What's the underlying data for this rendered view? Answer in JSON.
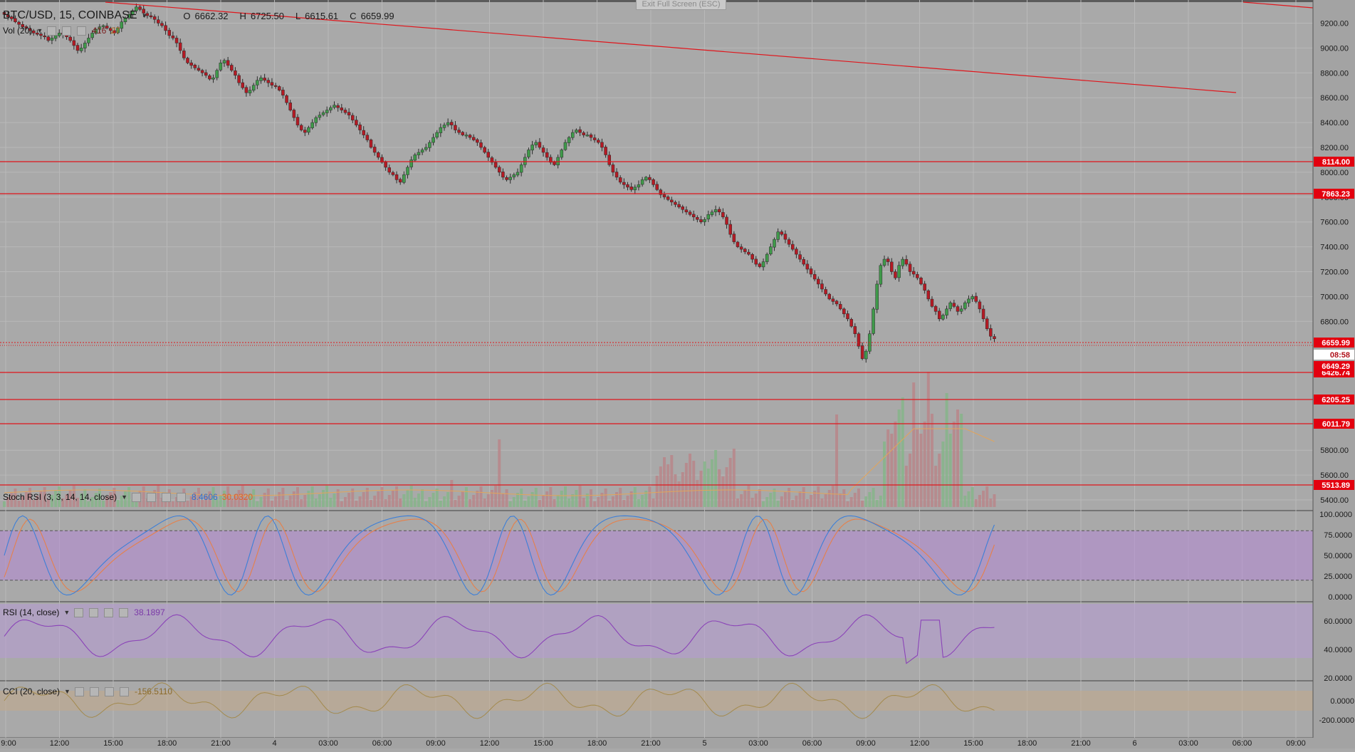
{
  "header": {
    "symbol_title": "BTC/USD, 15, COINBASE",
    "ohlc": [
      {
        "key": "O",
        "value": "6662.32"
      },
      {
        "key": "H",
        "value": "6725.50"
      },
      {
        "key": "L",
        "value": "6615.61"
      },
      {
        "key": "C",
        "value": "6659.99"
      }
    ],
    "exit_fullscreen": "Exit Full Screen (ESC)"
  },
  "colors": {
    "background": "#a9a9a9",
    "grid": "#b9b9b9",
    "up_candle": "#3f9a4a",
    "down_candle": "#b51a24",
    "level_line": "#e0161c",
    "level_label_bg": "#e3000f",
    "stoch_band": "#b589d6",
    "rsi_band": "#b79ad6",
    "rsi_line": "#8b44b8",
    "stoch_k": "#3d7fd8",
    "stoch_d": "#e6804a",
    "cci_band": "#c2a98a",
    "cci_line": "#a38a4e"
  },
  "indicators": {
    "volume": {
      "label": "Vol (20)",
      "value": "416",
      "value2": "27"
    },
    "stoch_rsi": {
      "label": "Stoch RSI (3, 3, 14, 14, close)",
      "k_value": "8.4606",
      "d_value": "30.0320"
    },
    "rsi": {
      "label": "RSI (14, close)",
      "value": "38.1897"
    },
    "cci": {
      "label": "CCI (20, close)",
      "value": "-156.5110"
    }
  },
  "price_axis": {
    "ticks": [
      "9200.00",
      "9000.00",
      "8800.00",
      "8600.00",
      "8400.00",
      "8200.00",
      "8000.00",
      "7800.00",
      "7600.00",
      "7400.00",
      "7200.00",
      "7000.00",
      "6800.00",
      "5800.00",
      "5600.00",
      "5400.00"
    ],
    "levels": [
      {
        "price": 8114.0,
        "label": "8114.00"
      },
      {
        "price": 7863.23,
        "label": "7863.23"
      },
      {
        "price": 6426.74,
        "label": "6426.74"
      },
      {
        "price": 6205.25,
        "label": "6205.25"
      },
      {
        "price": 6011.79,
        "label": "6011.79"
      },
      {
        "price": 5513.89,
        "label": "5513.89"
      }
    ],
    "current_price": {
      "price": 6659.99,
      "label": "6659.99"
    },
    "countdown": "08:58",
    "secondary_level": {
      "label": "6649.29"
    }
  },
  "stoch_axis": {
    "ticks": [
      "100.0000",
      "75.0000",
      "50.0000",
      "25.0000",
      "0.0000"
    ]
  },
  "rsi_axis": {
    "ticks": [
      "60.0000",
      "40.0000",
      "20.0000"
    ]
  },
  "cci_axis": {
    "ticks": [
      "0.0000",
      "-200.0000"
    ]
  },
  "time_axis": {
    "labels": [
      "9:00",
      "12:00",
      "15:00",
      "18:00",
      "21:00",
      "4",
      "03:00",
      "06:00",
      "09:00",
      "12:00",
      "15:00",
      "18:00",
      "21:00",
      "5",
      "03:00",
      "06:00",
      "09:00",
      "12:00",
      "15:00",
      "18:00",
      "21:00",
      "6",
      "03:00",
      "06:00",
      "09:00"
    ]
  },
  "chart_data": {
    "type": "candlestick",
    "series_candles_close": [
      9270,
      9250,
      9235,
      9210,
      9190,
      9170,
      9160,
      9140,
      9120,
      9110,
      9100,
      9090,
      9060,
      9080,
      9100,
      9120,
      9110,
      9090,
      9060,
      9020,
      8980,
      9000,
      9040,
      9080,
      9120,
      9150,
      9170,
      9180,
      9160,
      9140,
      9120,
      9160,
      9210,
      9240,
      9270,
      9300,
      9330,
      9310,
      9280,
      9260,
      9250,
      9230,
      9200,
      9180,
      9140,
      9100,
      9080,
      9040,
      8980,
      8920,
      8880,
      8860,
      8840,
      8820,
      8800,
      8780,
      8750,
      8760,
      8820,
      8880,
      8900,
      8860,
      8820,
      8780,
      8720,
      8680,
      8640,
      8660,
      8700,
      8740,
      8760,
      8740,
      8720,
      8700,
      8690,
      8660,
      8620,
      8560,
      8500,
      8440,
      8380,
      8340,
      8320,
      8360,
      8400,
      8440,
      8460,
      8480,
      8500,
      8520,
      8540,
      8520,
      8500,
      8480,
      8460,
      8420,
      8380,
      8340,
      8300,
      8260,
      8200,
      8160,
      8120,
      8080,
      8040,
      8000,
      7980,
      7940,
      7920,
      7980,
      8040,
      8100,
      8140,
      8160,
      8180,
      8200,
      8240,
      8280,
      8320,
      8360,
      8380,
      8400,
      8380,
      8340,
      8320,
      8300,
      8300,
      8280,
      8260,
      8240,
      8200,
      8160,
      8120,
      8080,
      8040,
      8000,
      7960,
      7940,
      7960,
      7980,
      8000,
      8060,
      8120,
      8180,
      8220,
      8240,
      8200,
      8160,
      8120,
      8080,
      8060,
      8120,
      8180,
      8240,
      8280,
      8320,
      8340,
      8320,
      8300,
      8300,
      8280,
      8260,
      8240,
      8200,
      8140,
      8060,
      8000,
      7960,
      7920,
      7900,
      7880,
      7860,
      7880,
      7900,
      7940,
      7960,
      7940,
      7900,
      7860,
      7820,
      7800,
      7780,
      7760,
      7740,
      7720,
      7700,
      7680,
      7660,
      7640,
      7620,
      7600,
      7620,
      7660,
      7680,
      7700,
      7680,
      7640,
      7580,
      7500,
      7440,
      7400,
      7380,
      7360,
      7340,
      7300,
      7260,
      7240,
      7280,
      7340,
      7400,
      7460,
      7520,
      7500,
      7460,
      7420,
      7380,
      7340,
      7300,
      7260,
      7220,
      7180,
      7140,
      7100,
      7060,
      7020,
      6980,
      6960,
      6940,
      6900,
      6860,
      6820,
      6760,
      6700,
      6600,
      6500,
      6560,
      6700,
      6900,
      7100,
      7250,
      7300,
      7280,
      7200,
      7150,
      7250,
      7300,
      7260,
      7200,
      7180,
      7150,
      7100,
      7050,
      6980,
      6920,
      6880,
      6820,
      6850,
      6900,
      6950,
      6920,
      6880,
      6900,
      6950,
      6980,
      7000,
      6960,
      6900,
      6820,
      6740,
      6680,
      6660
    ]
  }
}
